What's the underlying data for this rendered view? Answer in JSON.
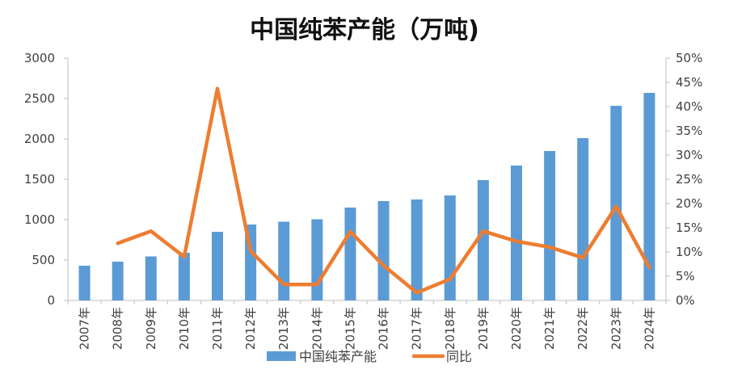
{
  "chart_data": {
    "type": "bar",
    "title": "中国纯苯产能（万吨)",
    "categories": [
      "2007年",
      "2008年",
      "2009年",
      "2010年",
      "2011年",
      "2012年",
      "2013年",
      "2014年",
      "2015年",
      "2016年",
      "2017年",
      "2018年",
      "2019年",
      "2020年",
      "2021年",
      "2022年",
      "2023年",
      "2024年"
    ],
    "series": [
      {
        "name": "中国纯苯产能",
        "type": "bar",
        "axis": "left",
        "color": "#5b9bd5",
        "values": [
          430,
          480,
          545,
          590,
          850,
          940,
          975,
          1005,
          1150,
          1230,
          1250,
          1300,
          1490,
          1670,
          1850,
          2010,
          2410,
          2570
        ]
      },
      {
        "name": "同比",
        "type": "line",
        "axis": "right",
        "color": "#ed7d31",
        "values": [
          null,
          0.118,
          0.143,
          0.09,
          0.437,
          0.102,
          0.033,
          0.033,
          0.142,
          0.072,
          0.016,
          0.044,
          0.143,
          0.122,
          0.11,
          0.088,
          0.194,
          0.068
        ]
      }
    ],
    "yAxisLeft": {
      "min": 0,
      "max": 3000,
      "step": 500,
      "ticks": [
        "0",
        "500",
        "1000",
        "1500",
        "2000",
        "2500",
        "3000"
      ]
    },
    "yAxisRight": {
      "min": 0,
      "max": 0.5,
      "step": 0.05,
      "ticks": [
        "0%",
        "5%",
        "10%",
        "15%",
        "20%",
        "25%",
        "30%",
        "35%",
        "40%",
        "45%",
        "50%"
      ]
    },
    "grid": false,
    "legend": "bottom"
  }
}
